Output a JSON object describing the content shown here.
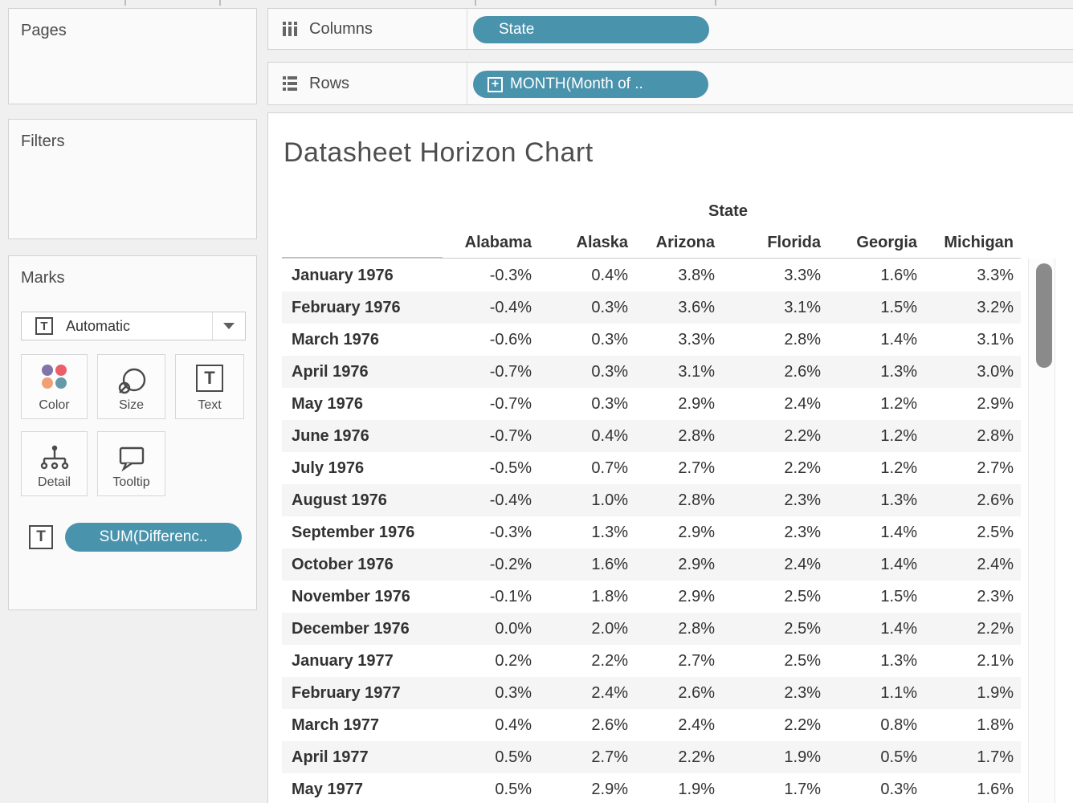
{
  "page": {
    "background": "#f0f0f0",
    "accent": "#4a93ad"
  },
  "shelves": {
    "columns": {
      "label": "Columns",
      "pill": "State"
    },
    "rows": {
      "label": "Rows",
      "pill": "MONTH(Month of ..",
      "pill_icon": "plus-box-icon"
    }
  },
  "panels": {
    "pages": {
      "title": "Pages"
    },
    "filters": {
      "title": "Filters"
    },
    "marks": {
      "title": "Marks",
      "mark_type": "Automatic",
      "mark_type_icon": "text-icon",
      "buttons": [
        {
          "label": "Color"
        },
        {
          "label": "Size"
        },
        {
          "label": "Text"
        },
        {
          "label": "Detail"
        },
        {
          "label": "Tooltip"
        }
      ],
      "color_dots": [
        "#8074a8",
        "#ec5e68",
        "#efa175",
        "#6799a8"
      ],
      "text_shelf_pill": {
        "icon": "text-icon",
        "label": "SUM(Differenc.."
      }
    }
  },
  "sheet": {
    "title": "Datasheet Horizon Chart",
    "column_group_header": "State",
    "columns": [
      "Alabama",
      "Alaska",
      "Arizona",
      "Florida",
      "Georgia",
      "Michigan"
    ],
    "rows": [
      {
        "label": "January 1976",
        "values": [
          "-0.3%",
          "0.4%",
          "3.8%",
          "3.3%",
          "1.6%",
          "3.3%"
        ]
      },
      {
        "label": "February 1976",
        "values": [
          "-0.4%",
          "0.3%",
          "3.6%",
          "3.1%",
          "1.5%",
          "3.2%"
        ]
      },
      {
        "label": "March 1976",
        "values": [
          "-0.6%",
          "0.3%",
          "3.3%",
          "2.8%",
          "1.4%",
          "3.1%"
        ]
      },
      {
        "label": "April 1976",
        "values": [
          "-0.7%",
          "0.3%",
          "3.1%",
          "2.6%",
          "1.3%",
          "3.0%"
        ]
      },
      {
        "label": "May 1976",
        "values": [
          "-0.7%",
          "0.3%",
          "2.9%",
          "2.4%",
          "1.2%",
          "2.9%"
        ]
      },
      {
        "label": "June 1976",
        "values": [
          "-0.7%",
          "0.4%",
          "2.8%",
          "2.2%",
          "1.2%",
          "2.8%"
        ]
      },
      {
        "label": "July 1976",
        "values": [
          "-0.5%",
          "0.7%",
          "2.7%",
          "2.2%",
          "1.2%",
          "2.7%"
        ]
      },
      {
        "label": "August 1976",
        "values": [
          "-0.4%",
          "1.0%",
          "2.8%",
          "2.3%",
          "1.3%",
          "2.6%"
        ]
      },
      {
        "label": "September 1976",
        "values": [
          "-0.3%",
          "1.3%",
          "2.9%",
          "2.3%",
          "1.4%",
          "2.5%"
        ]
      },
      {
        "label": "October 1976",
        "values": [
          "-0.2%",
          "1.6%",
          "2.9%",
          "2.4%",
          "1.4%",
          "2.4%"
        ]
      },
      {
        "label": "November 1976",
        "values": [
          "-0.1%",
          "1.8%",
          "2.9%",
          "2.5%",
          "1.5%",
          "2.3%"
        ]
      },
      {
        "label": "December 1976",
        "values": [
          "0.0%",
          "2.0%",
          "2.8%",
          "2.5%",
          "1.4%",
          "2.2%"
        ]
      },
      {
        "label": "January 1977",
        "values": [
          "0.2%",
          "2.2%",
          "2.7%",
          "2.5%",
          "1.3%",
          "2.1%"
        ]
      },
      {
        "label": "February 1977",
        "values": [
          "0.3%",
          "2.4%",
          "2.6%",
          "2.3%",
          "1.1%",
          "1.9%"
        ]
      },
      {
        "label": "March 1977",
        "values": [
          "0.4%",
          "2.6%",
          "2.4%",
          "2.2%",
          "0.8%",
          "1.8%"
        ]
      },
      {
        "label": "April 1977",
        "values": [
          "0.5%",
          "2.7%",
          "2.2%",
          "1.9%",
          "0.5%",
          "1.7%"
        ]
      },
      {
        "label": "May 1977",
        "values": [
          "0.5%",
          "2.9%",
          "1.9%",
          "1.7%",
          "0.3%",
          "1.6%"
        ]
      }
    ]
  }
}
